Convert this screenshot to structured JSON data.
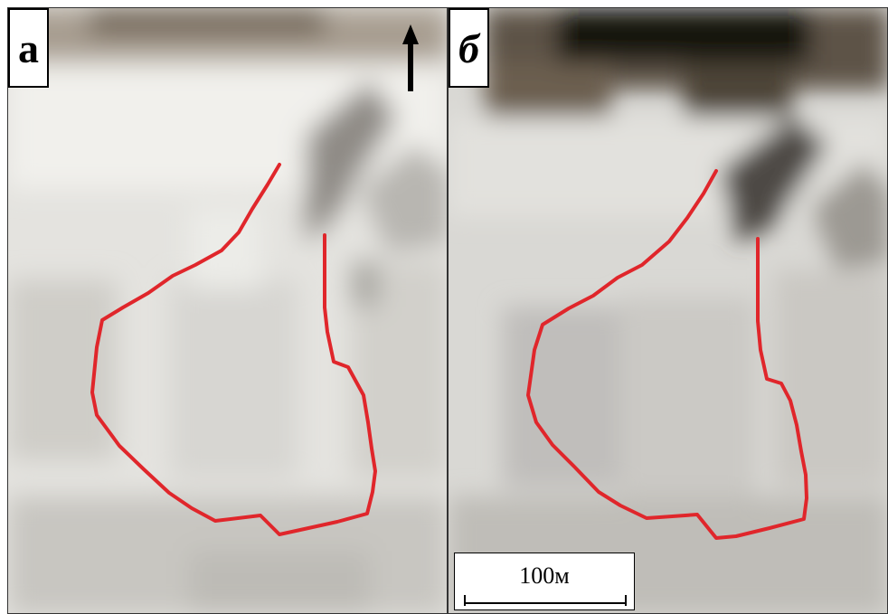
{
  "panels": [
    {
      "id": "a",
      "label": "а"
    },
    {
      "id": "b",
      "label": "б"
    }
  ],
  "scale_bar": {
    "text": "100м"
  },
  "north_arrow": {
    "icon": "north-arrow-icon"
  },
  "colors": {
    "outline": "#e0262b",
    "snow": "#e9e8e4",
    "shadow": "#3a3430"
  }
}
